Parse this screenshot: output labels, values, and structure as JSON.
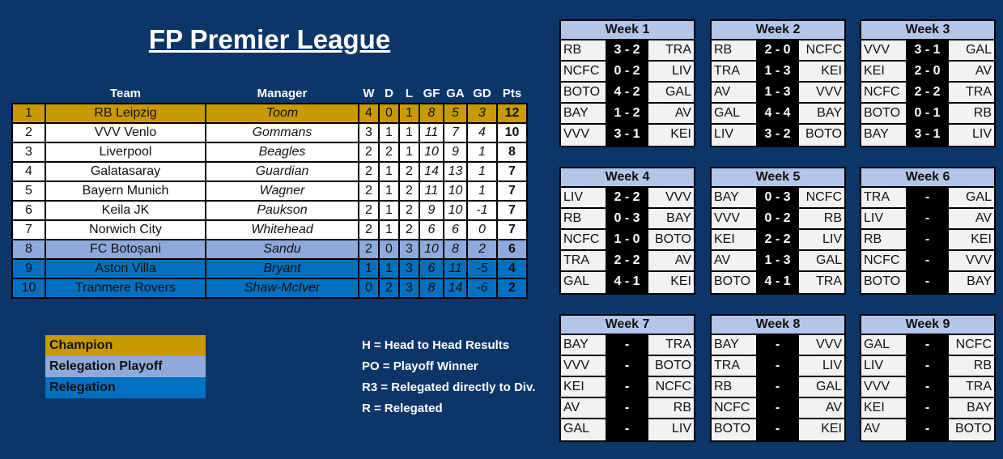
{
  "title": "FP Premier League",
  "colors": {
    "background": "#0c3668",
    "champion": "#c89a00",
    "relegation_playoff": "#8eaadb",
    "relegation": "#0070c0",
    "week_header": "#b4c6e7"
  },
  "table": {
    "headers": [
      "",
      "Team",
      "Manager",
      "W",
      "D",
      "L",
      "GF",
      "GA",
      "GD",
      "Pts"
    ],
    "rows": [
      {
        "pos": "1",
        "team": "RB Leipzig",
        "manager": "Toom",
        "w": "4",
        "d": "0",
        "l": "1",
        "gf": "8",
        "ga": "5",
        "gd": "3",
        "pts": "12",
        "status": "champion"
      },
      {
        "pos": "2",
        "team": "VVV Venlo",
        "manager": "Gommans",
        "w": "3",
        "d": "1",
        "l": "1",
        "gf": "11",
        "ga": "7",
        "gd": "4",
        "pts": "10",
        "status": ""
      },
      {
        "pos": "3",
        "team": "Liverpool",
        "manager": "Beagles",
        "w": "2",
        "d": "2",
        "l": "1",
        "gf": "10",
        "ga": "9",
        "gd": "1",
        "pts": "8",
        "status": ""
      },
      {
        "pos": "4",
        "team": "Galatasaray",
        "manager": "Guardian",
        "w": "2",
        "d": "1",
        "l": "2",
        "gf": "14",
        "ga": "13",
        "gd": "1",
        "pts": "7",
        "status": ""
      },
      {
        "pos": "5",
        "team": "Bayern Munich",
        "manager": "Wagner",
        "w": "2",
        "d": "1",
        "l": "2",
        "gf": "11",
        "ga": "10",
        "gd": "1",
        "pts": "7",
        "status": ""
      },
      {
        "pos": "6",
        "team": "Keila JK",
        "manager": "Paukson",
        "w": "2",
        "d": "1",
        "l": "2",
        "gf": "9",
        "ga": "10",
        "gd": "-1",
        "pts": "7",
        "status": ""
      },
      {
        "pos": "7",
        "team": "Norwich City",
        "manager": "Whitehead",
        "w": "2",
        "d": "1",
        "l": "2",
        "gf": "6",
        "ga": "6",
        "gd": "0",
        "pts": "7",
        "status": ""
      },
      {
        "pos": "8",
        "team": "FC Botoșani",
        "manager": "Sandu",
        "w": "2",
        "d": "0",
        "l": "3",
        "gf": "10",
        "ga": "8",
        "gd": "2",
        "pts": "6",
        "status": "relegation_playoff"
      },
      {
        "pos": "9",
        "team": "Aston Villa",
        "manager": "Bryant",
        "w": "1",
        "d": "1",
        "l": "3",
        "gf": "6",
        "ga": "11",
        "gd": "-5",
        "pts": "4",
        "status": "relegation"
      },
      {
        "pos": "10",
        "team": "Tranmere Rovers",
        "manager": "Shaw-McIver",
        "w": "0",
        "d": "2",
        "l": "3",
        "gf": "8",
        "ga": "14",
        "gd": "-6",
        "pts": "2",
        "status": "relegation"
      }
    ]
  },
  "legend": [
    {
      "label": "Champion",
      "status": "champion"
    },
    {
      "label": "Relegation Playoff",
      "status": "relegation_playoff"
    },
    {
      "label": "Relegation",
      "status": "relegation"
    }
  ],
  "notes": [
    "H = Head to Head Results",
    "PO = Playoff Winner",
    "R3 = Relegated directly to Div.",
    "R = Relegated"
  ],
  "weeks": [
    {
      "title": "Week 1",
      "matches": [
        [
          "RB",
          "3 - 2",
          "TRA"
        ],
        [
          "NCFC",
          "0 - 2",
          "LIV"
        ],
        [
          "BOTO",
          "4 - 2",
          "GAL"
        ],
        [
          "BAY",
          "1 - 2",
          "AV"
        ],
        [
          "VVV",
          "3 - 1",
          "KEI"
        ]
      ]
    },
    {
      "title": "Week 2",
      "matches": [
        [
          "RB",
          "2 - 0",
          "NCFC"
        ],
        [
          "TRA",
          "1 - 3",
          "KEI"
        ],
        [
          "AV",
          "1 - 3",
          "VVV"
        ],
        [
          "GAL",
          "4 - 4",
          "BAY"
        ],
        [
          "LIV",
          "3 - 2",
          "BOTO"
        ]
      ]
    },
    {
      "title": "Week 3",
      "matches": [
        [
          "VVV",
          "3 - 1",
          "GAL"
        ],
        [
          "KEI",
          "2 - 0",
          "AV"
        ],
        [
          "NCFC",
          "2 - 2",
          "TRA"
        ],
        [
          "BOTO",
          "0 - 1",
          "RB"
        ],
        [
          "BAY",
          "3 - 1",
          "LIV"
        ]
      ]
    },
    {
      "title": "Week 4",
      "matches": [
        [
          "LIV",
          "2 - 2",
          "VVV"
        ],
        [
          "RB",
          "0 - 3",
          "BAY"
        ],
        [
          "NCFC",
          "1 - 0",
          "BOTO"
        ],
        [
          "TRA",
          "2 - 2",
          "AV"
        ],
        [
          "GAL",
          "4 - 1",
          "KEI"
        ]
      ]
    },
    {
      "title": "Week 5",
      "matches": [
        [
          "BAY",
          "0 - 3",
          "NCFC"
        ],
        [
          "VVV",
          "0 - 2",
          "RB"
        ],
        [
          "KEI",
          "2 - 2",
          "LIV"
        ],
        [
          "AV",
          "1 - 3",
          "GAL"
        ],
        [
          "BOTO",
          "4 - 1",
          "TRA"
        ]
      ]
    },
    {
      "title": "Week 6",
      "matches": [
        [
          "TRA",
          "-",
          "GAL"
        ],
        [
          "LIV",
          "-",
          "AV"
        ],
        [
          "RB",
          "-",
          "KEI"
        ],
        [
          "NCFC",
          "-",
          "VVV"
        ],
        [
          "BOTO",
          "-",
          "BAY"
        ]
      ]
    },
    {
      "title": "Week 7",
      "matches": [
        [
          "BAY",
          "-",
          "TRA"
        ],
        [
          "VVV",
          "-",
          "BOTO"
        ],
        [
          "KEI",
          "-",
          "NCFC"
        ],
        [
          "AV",
          "-",
          "RB"
        ],
        [
          "GAL",
          "-",
          "LIV"
        ]
      ]
    },
    {
      "title": "Week 8",
      "matches": [
        [
          "BAY",
          "-",
          "VVV"
        ],
        [
          "TRA",
          "-",
          "LIV"
        ],
        [
          "RB",
          "-",
          "GAL"
        ],
        [
          "NCFC",
          "-",
          "AV"
        ],
        [
          "BOTO",
          "-",
          "KEI"
        ]
      ]
    },
    {
      "title": "Week 9",
      "matches": [
        [
          "GAL",
          "-",
          "NCFC"
        ],
        [
          "LIV",
          "-",
          "RB"
        ],
        [
          "VVV",
          "-",
          "TRA"
        ],
        [
          "KEI",
          "-",
          "BAY"
        ],
        [
          "AV",
          "-",
          "BOTO"
        ]
      ]
    }
  ]
}
